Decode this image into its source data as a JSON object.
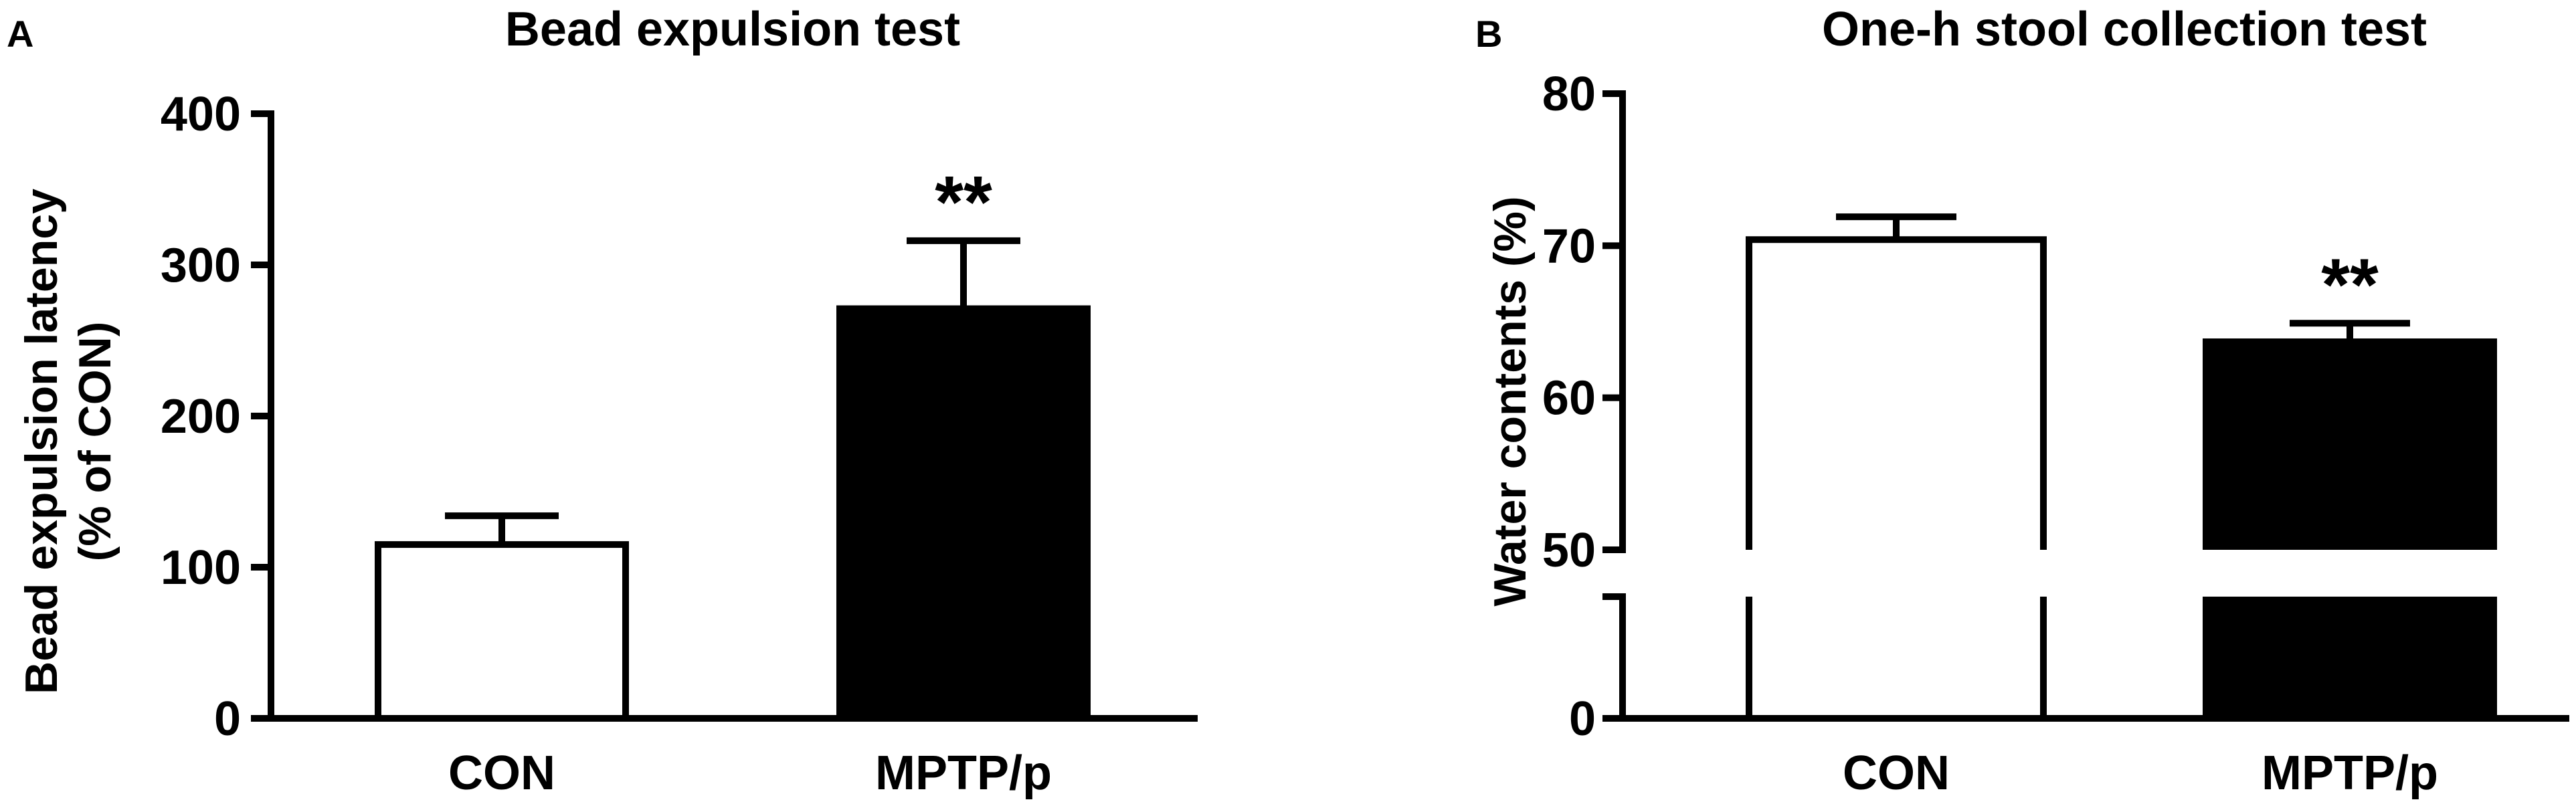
{
  "colors": {
    "ink": "#000000",
    "paper": "#ffffff"
  },
  "chart_data": [
    {
      "type": "bar",
      "panel_label": "A",
      "title": "Bead expulsion test",
      "ylabel_line1": "Bead expulsion latency",
      "ylabel_line2": "(% of CON)",
      "xlabel": "",
      "categories": [
        "CON",
        "MPTP/p"
      ],
      "values": [
        115,
        271
      ],
      "errors": [
        19,
        45
      ],
      "bar_fill": [
        "#ffffff",
        "#000000"
      ],
      "significance": [
        "",
        "**"
      ],
      "ylim": [
        0,
        400
      ],
      "yticks": [
        0,
        100,
        200,
        300,
        400
      ],
      "ytick_labels": [
        "0",
        "100",
        "200",
        "300",
        "400"
      ],
      "grid": false,
      "legend": "none"
    },
    {
      "type": "bar",
      "panel_label": "B",
      "title": "One-h stool collection test",
      "ylabel_line1": "Water contents (%)",
      "ylabel_line2": "",
      "xlabel": "",
      "categories": [
        "CON",
        "MPTP/p"
      ],
      "values": [
        70.4,
        63.9
      ],
      "errors": [
        1.5,
        1.0
      ],
      "bar_fill": [
        "#ffffff",
        "#000000"
      ],
      "significance": [
        "",
        "**"
      ],
      "axis_break": [
        0,
        50
      ],
      "ylim": [
        0,
        80
      ],
      "yticks": [
        0,
        50,
        60,
        70,
        80
      ],
      "ytick_labels": [
        "0",
        "50",
        "60",
        "70",
        "80"
      ],
      "grid": false,
      "legend": "none"
    }
  ]
}
